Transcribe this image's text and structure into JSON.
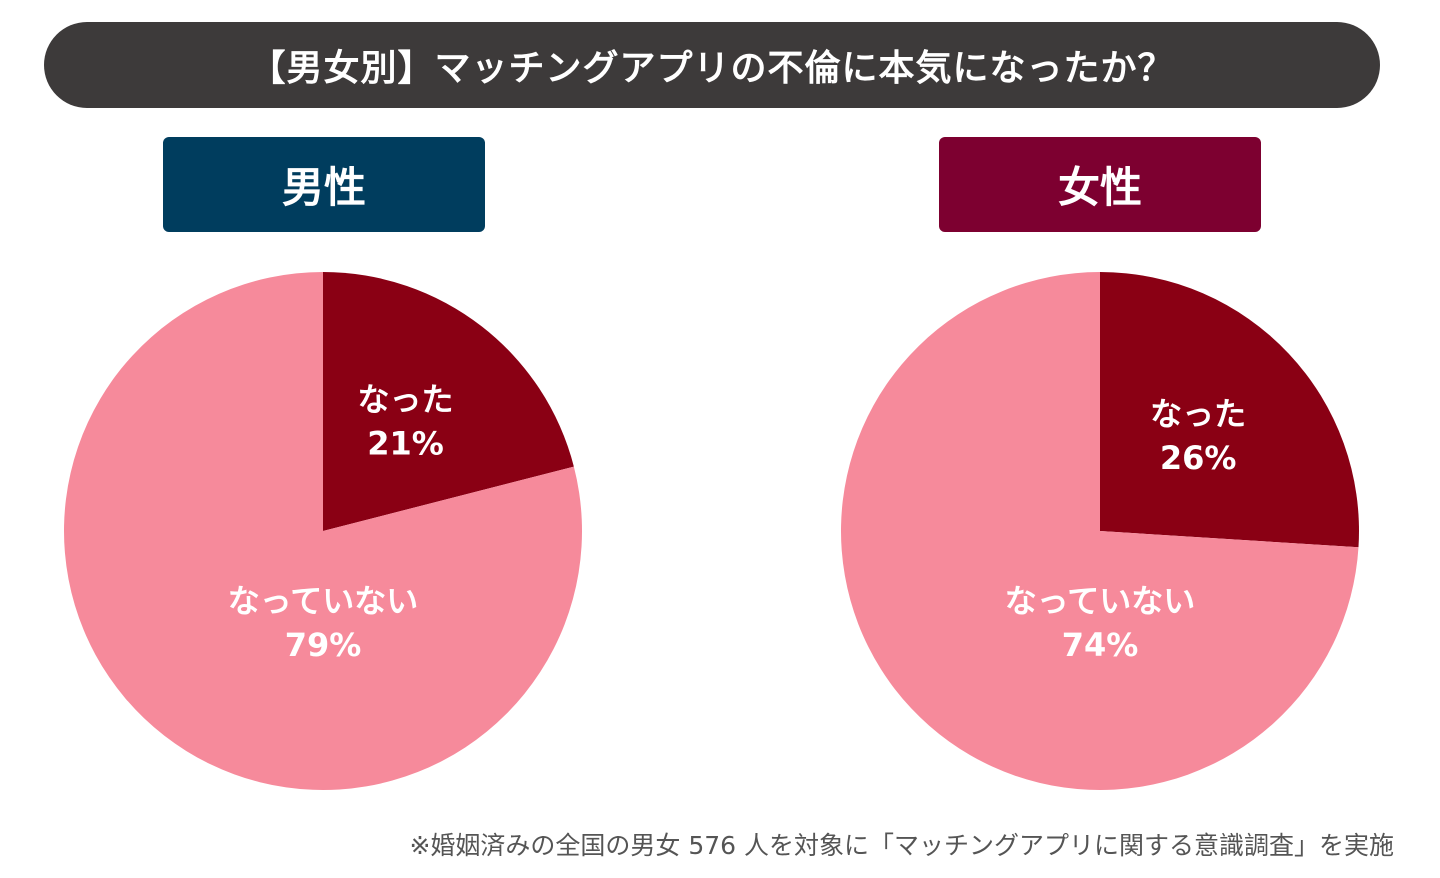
{
  "title": "【男女別】マッチングアプリの不倫に本気になったか？",
  "footnote": "※婚姻済みの全国の男女 576 人を対象に「マッチングアプリに関する意識調査」を実施",
  "colors": {
    "title_bg": "#3d3a3a",
    "male_label_bg": "#003d5e",
    "female_label_bg": "#7d0030",
    "became": "#8a0014",
    "not_became": "#f68a9b"
  },
  "chart_data": [
    {
      "type": "pie",
      "title": "男性",
      "categories": [
        "なった",
        "なっていない"
      ],
      "values": [
        21,
        79
      ],
      "labels": [
        "21%",
        "79%"
      ]
    },
    {
      "type": "pie",
      "title": "女性",
      "categories": [
        "なった",
        "なっていない"
      ],
      "values": [
        26,
        74
      ],
      "labels": [
        "26%",
        "74%"
      ]
    }
  ]
}
